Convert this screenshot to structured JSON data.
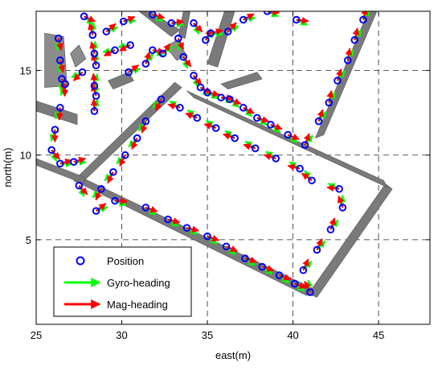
{
  "chart_data": {
    "type": "scatter",
    "xlabel": "east(m)",
    "ylabel": "north(m)",
    "xlim": [
      25,
      48
    ],
    "ylim": [
      0,
      18.5
    ],
    "x_ticks": [
      "25",
      "30",
      "35",
      "40",
      "45"
    ],
    "y_ticks": [
      "5",
      "10",
      "15"
    ],
    "grid": true,
    "legend_position": "bottom-left",
    "legend": [
      {
        "label": "Position",
        "color": "#0000ff",
        "marker": "circle"
      },
      {
        "label": "Gyro-heading",
        "color": "#00ff00",
        "marker": "arrow"
      },
      {
        "label": "Mag-heading",
        "color": "#ff0000",
        "marker": "arrow"
      }
    ],
    "walls": [
      {
        "label": "wall-lower-outer",
        "points": [
          [
            27.2,
            8.9
          ],
          [
            27.2,
            8.5
          ],
          [
            40.8,
            1.7
          ],
          [
            41.2,
            2.1
          ]
        ]
      },
      {
        "label": "wall-right",
        "points": [
          [
            40.9,
            1.8
          ],
          [
            41.4,
            1.6
          ],
          [
            45.8,
            8.0
          ],
          [
            45.4,
            8.3
          ]
        ]
      },
      {
        "label": "wall-inner-top",
        "points": [
          [
            33.8,
            13.8
          ],
          [
            34.2,
            13.4
          ],
          [
            45.5,
            8.1
          ],
          [
            45.3,
            8.5
          ]
        ]
      },
      {
        "label": "wall-left-diag",
        "points": [
          [
            27.2,
            8.5
          ],
          [
            27.6,
            8.3
          ],
          [
            33.5,
            14.0
          ],
          [
            33.1,
            14.3
          ]
        ]
      },
      {
        "label": "wall-upper-right",
        "points": [
          [
            41.3,
            11.0
          ],
          [
            41.8,
            11.2
          ],
          [
            44.9,
            18.5
          ],
          [
            44.4,
            18.5
          ]
        ]
      },
      {
        "label": "wall-top-left",
        "points": [
          [
            25.0,
            13.2
          ],
          [
            25.0,
            12.6
          ],
          [
            27.4,
            11.8
          ],
          [
            27.4,
            12.4
          ]
        ]
      },
      {
        "label": "wall-far-left",
        "points": [
          [
            25.0,
            9.4
          ],
          [
            25.0,
            9.8
          ],
          [
            27.8,
            8.7
          ],
          [
            27.8,
            8.3
          ]
        ]
      },
      {
        "label": "wall-top-mid",
        "points": [
          [
            29.2,
            14.4
          ],
          [
            29.5,
            13.9
          ],
          [
            30.7,
            14.4
          ],
          [
            30.4,
            14.9
          ]
        ]
      },
      {
        "label": "wall-top-a",
        "points": [
          [
            31.0,
            18.5
          ],
          [
            31.6,
            18.5
          ],
          [
            33.4,
            17.4
          ],
          [
            32.9,
            17.0
          ]
        ]
      },
      {
        "label": "wall-top-b",
        "points": [
          [
            33.3,
            17.0
          ],
          [
            33.6,
            18.5
          ],
          [
            34.0,
            18.5
          ],
          [
            33.7,
            16.9
          ]
        ]
      },
      {
        "label": "wall-top-c",
        "points": [
          [
            35.0,
            15.4
          ],
          [
            35.6,
            15.2
          ],
          [
            36.6,
            18.5
          ],
          [
            36.0,
            18.5
          ]
        ]
      },
      {
        "label": "wall-ne-stub",
        "points": [
          [
            35.8,
            14.2
          ],
          [
            36.2,
            13.9
          ],
          [
            38.2,
            14.5
          ],
          [
            37.9,
            14.9
          ]
        ]
      }
    ],
    "obstacles": [
      {
        "label": "block-left",
        "points": [
          [
            25.5,
            17.2
          ],
          [
            26.6,
            17.0
          ],
          [
            26.8,
            14.1
          ],
          [
            25.5,
            14.0
          ]
        ]
      },
      {
        "label": "block-nw",
        "points": [
          [
            27.3,
            15.2
          ],
          [
            27.9,
            15.7
          ],
          [
            27.5,
            16.5
          ],
          [
            27.0,
            16.0
          ]
        ]
      },
      {
        "label": "block-top",
        "points": [
          [
            32.6,
            16.4
          ],
          [
            33.2,
            16.8
          ],
          [
            33.8,
            15.9
          ],
          [
            33.2,
            15.6
          ]
        ]
      }
    ],
    "positions": [
      [
        27.5,
        8.2
      ],
      [
        28.5,
        6.7
      ],
      [
        29.6,
        7.3
      ],
      [
        31.4,
        6.9
      ],
      [
        32.7,
        6.2
      ],
      [
        33.8,
        5.7
      ],
      [
        35.0,
        5.2
      ],
      [
        36.1,
        4.6
      ],
      [
        37.2,
        3.9
      ],
      [
        38.2,
        3.4
      ],
      [
        39.2,
        2.9
      ],
      [
        40.1,
        2.4
      ],
      [
        41.0,
        1.9
      ],
      [
        40.6,
        3.2
      ],
      [
        41.4,
        4.4
      ],
      [
        42.2,
        5.6
      ],
      [
        42.9,
        6.9
      ],
      [
        42.7,
        8.0
      ],
      [
        41.1,
        8.5
      ],
      [
        40.4,
        9.2
      ],
      [
        39.0,
        9.8
      ],
      [
        37.8,
        10.4
      ],
      [
        36.6,
        11.0
      ],
      [
        35.5,
        11.6
      ],
      [
        34.4,
        12.2
      ],
      [
        33.4,
        12.8
      ],
      [
        32.3,
        13.3
      ],
      [
        31.4,
        12.0
      ],
      [
        30.9,
        11.0
      ],
      [
        30.2,
        10.0
      ],
      [
        29.5,
        9.0
      ],
      [
        28.8,
        8.0
      ],
      [
        28.4,
        12.6
      ],
      [
        28.5,
        13.5
      ],
      [
        28.4,
        14.1
      ],
      [
        28.5,
        15.3
      ],
      [
        28.4,
        16.0
      ],
      [
        28.3,
        17.1
      ],
      [
        27.7,
        14.9
      ],
      [
        26.7,
        14.2
      ],
      [
        26.4,
        12.8
      ],
      [
        26.1,
        11.5
      ],
      [
        25.9,
        10.3
      ],
      [
        26.4,
        9.5
      ],
      [
        27.2,
        9.6
      ],
      [
        30.4,
        14.9
      ],
      [
        31.4,
        15.4
      ],
      [
        31.8,
        16.2
      ],
      [
        32.4,
        16.0
      ],
      [
        33.3,
        16.9
      ],
      [
        33.6,
        15.8
      ],
      [
        34.2,
        14.7
      ],
      [
        34.6,
        14.0
      ],
      [
        35.0,
        13.7
      ],
      [
        35.8,
        13.4
      ],
      [
        36.3,
        13.3
      ],
      [
        37.1,
        12.8
      ],
      [
        37.9,
        12.2
      ],
      [
        38.7,
        11.8
      ],
      [
        39.7,
        11.2
      ],
      [
        40.7,
        10.6
      ],
      [
        41.5,
        12.0
      ],
      [
        42.1,
        13.1
      ],
      [
        42.6,
        14.4
      ],
      [
        43.2,
        15.6
      ],
      [
        43.6,
        16.8
      ],
      [
        44.1,
        18.0
      ],
      [
        26.3,
        16.9
      ],
      [
        26.4,
        15.6
      ],
      [
        26.5,
        14.5
      ],
      [
        27.8,
        18.2
      ],
      [
        29.1,
        17.3
      ],
      [
        30.1,
        17.9
      ],
      [
        31.8,
        18.3
      ],
      [
        32.9,
        17.8
      ],
      [
        34.2,
        17.8
      ],
      [
        34.9,
        16.8
      ],
      [
        35.2,
        17.2
      ],
      [
        36.2,
        17.3
      ],
      [
        37.1,
        18.0
      ],
      [
        38.5,
        18.5
      ],
      [
        40.2,
        18.0
      ],
      [
        30.5,
        16.5
      ],
      [
        29.6,
        16.2
      ]
    ]
  }
}
